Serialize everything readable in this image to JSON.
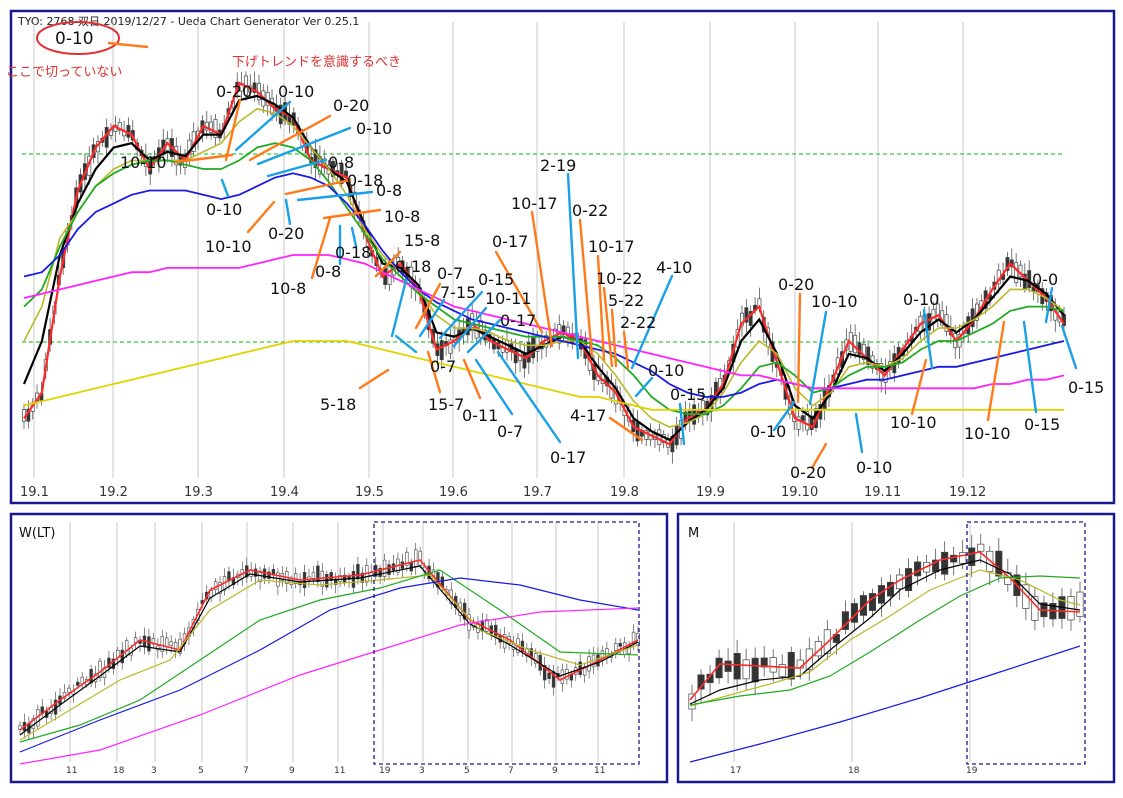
{
  "header": {
    "text": "TYO: 2768 双日 2019/12/27   - Ueda Chart Generator Ver 0.25.1"
  },
  "annotations": {
    "circled": "0-10",
    "note_left": "ここで切っていない",
    "note_trend": "下げトレンドを意識するべき"
  },
  "colors": {
    "frame": "#1a1a8c",
    "up_candle": "#ffffff",
    "down_candle": "#333333",
    "ma_red": "#ff2a2a",
    "ma_black": "#000000",
    "ma_olive": "#b9b92a",
    "ma_green": "#22aa22",
    "ma_blue": "#1a1ae6",
    "ma_magenta": "#ff22ff",
    "ma_yellow": "#e0d400",
    "dashed_green": "#33cc33",
    "label_orange": "#ff7a1a",
    "label_blue": "#1aa0e6",
    "note_red": "#e03030",
    "tick_text": "#333333"
  },
  "chart_data": [
    {
      "type": "candlestick",
      "panel": "daily",
      "x_labels": [
        "19.1",
        "19.2",
        "19.3",
        "19.4",
        "19.5",
        "19.6",
        "19.7",
        "19.8",
        "19.9",
        "19.10",
        "19.11",
        "19.12"
      ],
      "grid": "vertical",
      "horizontal_dashed_levels": [
        0.2,
        0.64
      ],
      "series": [
        {
          "color": "#ff2a2a",
          "values": [
            0.88,
            0.82,
            0.55,
            0.35,
            0.25,
            0.2,
            0.22,
            0.3,
            0.24,
            0.28,
            0.2,
            0.22,
            0.1,
            0.12,
            0.16,
            0.18,
            0.28,
            0.3,
            0.32,
            0.45,
            0.55,
            0.52,
            0.58,
            0.72,
            0.7,
            0.66,
            0.7,
            0.72,
            0.74,
            0.7,
            0.68,
            0.7,
            0.78,
            0.82,
            0.9,
            0.92,
            0.94,
            0.88,
            0.86,
            0.8,
            0.66,
            0.62,
            0.75,
            0.88,
            0.9,
            0.8,
            0.7,
            0.74,
            0.78,
            0.72,
            0.66,
            0.64,
            0.7,
            0.65,
            0.58,
            0.52,
            0.56,
            0.6,
            0.66
          ]
        },
        {
          "color": "#000000",
          "values": [
            0.8,
            0.7,
            0.5,
            0.38,
            0.3,
            0.25,
            0.24,
            0.28,
            0.26,
            0.27,
            0.22,
            0.22,
            0.14,
            0.13,
            0.15,
            0.18,
            0.25,
            0.3,
            0.33,
            0.43,
            0.52,
            0.53,
            0.57,
            0.68,
            0.69,
            0.67,
            0.69,
            0.71,
            0.73,
            0.71,
            0.69,
            0.7,
            0.76,
            0.81,
            0.88,
            0.91,
            0.93,
            0.89,
            0.86,
            0.81,
            0.7,
            0.65,
            0.73,
            0.85,
            0.88,
            0.82,
            0.73,
            0.74,
            0.77,
            0.73,
            0.68,
            0.65,
            0.68,
            0.65,
            0.6,
            0.55,
            0.56,
            0.59,
            0.64
          ]
        },
        {
          "color": "#b9b92a",
          "values": [
            0.7,
            0.62,
            0.46,
            0.4,
            0.34,
            0.3,
            0.28,
            0.28,
            0.28,
            0.28,
            0.26,
            0.24,
            0.19,
            0.16,
            0.17,
            0.2,
            0.25,
            0.3,
            0.36,
            0.44,
            0.5,
            0.54,
            0.58,
            0.64,
            0.67,
            0.67,
            0.68,
            0.7,
            0.71,
            0.71,
            0.7,
            0.7,
            0.73,
            0.78,
            0.84,
            0.88,
            0.9,
            0.89,
            0.87,
            0.82,
            0.75,
            0.7,
            0.73,
            0.81,
            0.85,
            0.82,
            0.76,
            0.75,
            0.76,
            0.74,
            0.7,
            0.67,
            0.67,
            0.65,
            0.62,
            0.58,
            0.58,
            0.6,
            0.63
          ]
        },
        {
          "color": "#22aa22",
          "values": [
            0.62,
            0.58,
            0.48,
            0.4,
            0.34,
            0.31,
            0.29,
            0.28,
            0.28,
            0.29,
            0.3,
            0.3,
            0.28,
            0.25,
            0.24,
            0.25,
            0.28,
            0.33,
            0.39,
            0.45,
            0.51,
            0.55,
            0.59,
            0.62,
            0.65,
            0.66,
            0.67,
            0.68,
            0.69,
            0.69,
            0.69,
            0.7,
            0.71,
            0.74,
            0.78,
            0.83,
            0.86,
            0.87,
            0.87,
            0.85,
            0.81,
            0.76,
            0.75,
            0.78,
            0.82,
            0.81,
            0.78,
            0.76,
            0.76,
            0.75,
            0.72,
            0.7,
            0.7,
            0.68,
            0.66,
            0.63,
            0.62,
            0.62,
            0.63
          ]
        },
        {
          "color": "#1a1ae6",
          "values": [
            0.55,
            0.54,
            0.5,
            0.44,
            0.4,
            0.38,
            0.36,
            0.35,
            0.35,
            0.35,
            0.36,
            0.37,
            0.36,
            0.34,
            0.32,
            0.31,
            0.32,
            0.34,
            0.38,
            0.43,
            0.49,
            0.54,
            0.58,
            0.61,
            0.63,
            0.65,
            0.66,
            0.67,
            0.68,
            0.69,
            0.7,
            0.71,
            0.72,
            0.73,
            0.75,
            0.77,
            0.8,
            0.82,
            0.83,
            0.83,
            0.82,
            0.8,
            0.79,
            0.8,
            0.81,
            0.81,
            0.8,
            0.79,
            0.79,
            0.78,
            0.77,
            0.76,
            0.76,
            0.75,
            0.74,
            0.73,
            0.72,
            0.71,
            0.7
          ]
        },
        {
          "color": "#ff22ff",
          "values": [
            0.6,
            0.59,
            0.58,
            0.57,
            0.56,
            0.55,
            0.54,
            0.54,
            0.53,
            0.53,
            0.53,
            0.53,
            0.53,
            0.52,
            0.51,
            0.5,
            0.5,
            0.5,
            0.51,
            0.52,
            0.54,
            0.56,
            0.58,
            0.6,
            0.62,
            0.63,
            0.64,
            0.65,
            0.66,
            0.67,
            0.68,
            0.69,
            0.7,
            0.71,
            0.72,
            0.73,
            0.74,
            0.75,
            0.76,
            0.77,
            0.78,
            0.78,
            0.79,
            0.8,
            0.81,
            0.81,
            0.81,
            0.81,
            0.81,
            0.81,
            0.81,
            0.81,
            0.81,
            0.81,
            0.8,
            0.8,
            0.79,
            0.79,
            0.78
          ]
        },
        {
          "color": "#e0d400",
          "values": [
            0.85,
            0.84,
            0.83,
            0.82,
            0.81,
            0.8,
            0.79,
            0.78,
            0.77,
            0.76,
            0.75,
            0.74,
            0.73,
            0.72,
            0.71,
            0.7,
            0.7,
            0.7,
            0.7,
            0.71,
            0.72,
            0.73,
            0.74,
            0.75,
            0.76,
            0.77,
            0.78,
            0.79,
            0.8,
            0.81,
            0.82,
            0.83,
            0.83,
            0.84,
            0.85,
            0.86,
            0.86,
            0.86,
            0.86,
            0.86,
            0.86,
            0.86,
            0.86,
            0.86,
            0.86,
            0.86,
            0.86,
            0.86,
            0.86,
            0.86,
            0.86,
            0.86,
            0.86,
            0.86,
            0.86,
            0.86,
            0.86,
            0.86,
            0.86
          ]
        }
      ],
      "labels_orange": [
        "0-20",
        "0-20",
        "10-10",
        "10-10",
        "0-18",
        "10-8",
        "10-8",
        "15-8",
        "0-7",
        "15-7",
        "0-11",
        "5-18",
        "0-17",
        "10-17",
        "0-22",
        "10-17",
        "10-22",
        "5-22",
        "2-22",
        "4-17",
        "0-20",
        "0-20",
        "10-10",
        "10-10"
      ],
      "labels_blue": [
        "0-10",
        "0-10",
        "0-8",
        "0-8",
        "0-10",
        "0-20",
        "0-18",
        "0-8",
        "0-18",
        "7-15",
        "0-15",
        "10-11",
        "0-17",
        "0-7",
        "0-7",
        "0-17",
        "2-19",
        "4-10",
        "0-10",
        "0-15",
        "10-10",
        "0-10",
        "0-10",
        "0-10",
        "0-15",
        "0-0"
      ]
    },
    {
      "type": "candlestick",
      "panel": "weekly",
      "title": "W(LT)",
      "x_labels": [
        "11",
        "18",
        "3",
        "5",
        "7",
        "9",
        "11",
        "19",
        "3",
        "5",
        "7",
        "9",
        "11"
      ],
      "grid": "vertical"
    },
    {
      "type": "candlestick",
      "panel": "monthly",
      "title": "M",
      "x_labels": [
        "17",
        "18",
        "19"
      ],
      "grid": "vertical"
    }
  ]
}
